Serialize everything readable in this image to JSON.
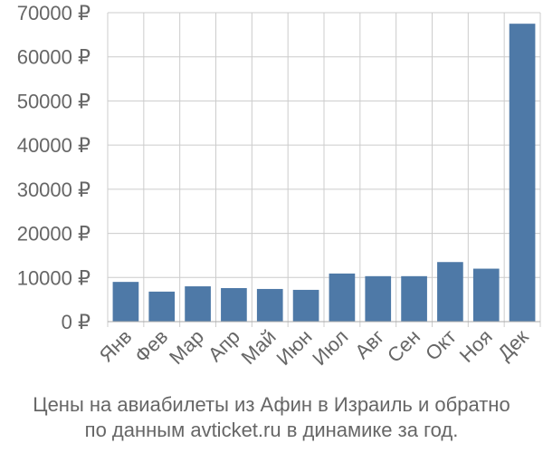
{
  "chart_data": {
    "type": "bar",
    "categories": [
      "Янв",
      "Фев",
      "Мар",
      "Апр",
      "Май",
      "Июн",
      "Июл",
      "Авг",
      "Сен",
      "Окт",
      "Ноя",
      "Дек"
    ],
    "values": [
      9000,
      6800,
      8000,
      7600,
      7400,
      7200,
      10900,
      10300,
      10300,
      13500,
      12000,
      67500
    ],
    "ylim": [
      0,
      70000
    ],
    "yticks": [
      0,
      10000,
      20000,
      30000,
      40000,
      50000,
      60000,
      70000
    ],
    "ytick_labels": [
      "0 ₽",
      "10000 ₽",
      "20000 ₽",
      "30000 ₽",
      "40000 ₽",
      "50000 ₽",
      "60000 ₽",
      "70000 ₽"
    ],
    "grid": true,
    "bar_color": "#4e79a7",
    "title": "",
    "xlabel": "",
    "ylabel": ""
  },
  "caption": {
    "line1": "Цены на авиабилеты из Афин в Израиль и обратно",
    "line2": "по данным avticket.ru в динамике за год."
  }
}
